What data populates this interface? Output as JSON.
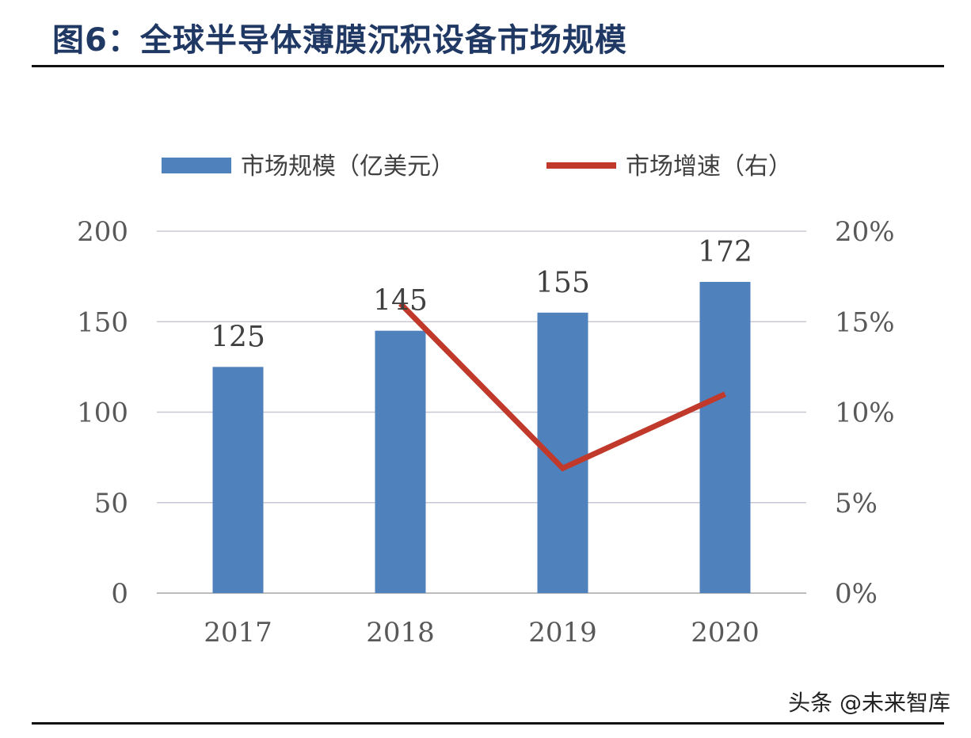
{
  "title": "图6：全球半导体薄膜沉积设备市场规模",
  "watermark": "头条 @未来智库",
  "colors": {
    "bar": "#4f81bd",
    "line": "#c0392b",
    "grid": "#c8c8d4",
    "title": "#1f3864"
  },
  "chart_data": {
    "type": "bar",
    "categories": [
      "2017",
      "2018",
      "2019",
      "2020"
    ],
    "series": [
      {
        "name": "市场规模（亿美元）",
        "type": "bar",
        "axis": "left",
        "values": [
          125,
          145,
          155,
          172
        ],
        "labels": [
          "125",
          "145",
          "155",
          "172"
        ]
      },
      {
        "name": "市场增速（右）",
        "type": "line",
        "axis": "right",
        "values": [
          null,
          16.0,
          6.9,
          11.0
        ]
      }
    ],
    "ylim": [
      0,
      200
    ],
    "yticks": [
      "0",
      "50",
      "100",
      "150",
      "200"
    ],
    "y2lim": [
      0,
      20
    ],
    "y2ticks": [
      "0%",
      "5%",
      "10%",
      "15%",
      "20%"
    ],
    "legend": {
      "position": "top"
    },
    "grid": true
  }
}
